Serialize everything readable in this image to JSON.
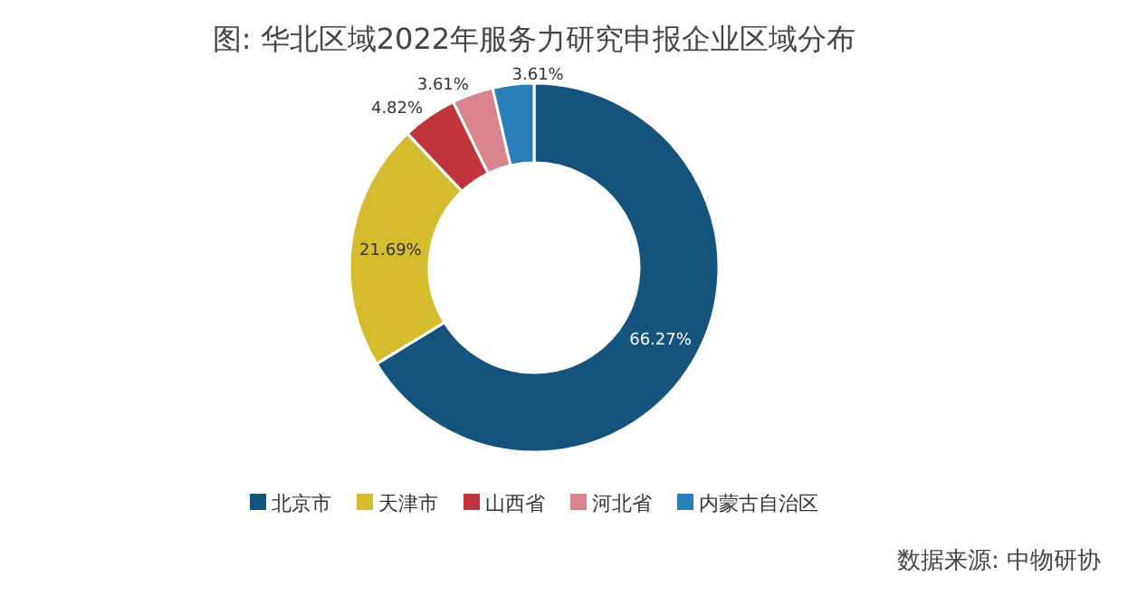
{
  "chart_data": {
    "type": "donut",
    "title": "图: 华北区域2022年服务力研究申报企业区域分布",
    "categories": [
      "北京市",
      "天津市",
      "山西省",
      "河北省",
      "内蒙古自治区"
    ],
    "values": [
      66.27,
      21.69,
      4.82,
      3.61,
      3.61
    ],
    "value_labels": [
      "66.27%",
      "21.69%",
      "4.82%",
      "3.61%",
      "3.61%"
    ],
    "colors": [
      "#13537c",
      "#d4bc2e",
      "#c0343c",
      "#d9848c",
      "#2a7fb8"
    ],
    "legend": "bottom",
    "annotations": [
      "数据来源: 中物研协"
    ]
  }
}
